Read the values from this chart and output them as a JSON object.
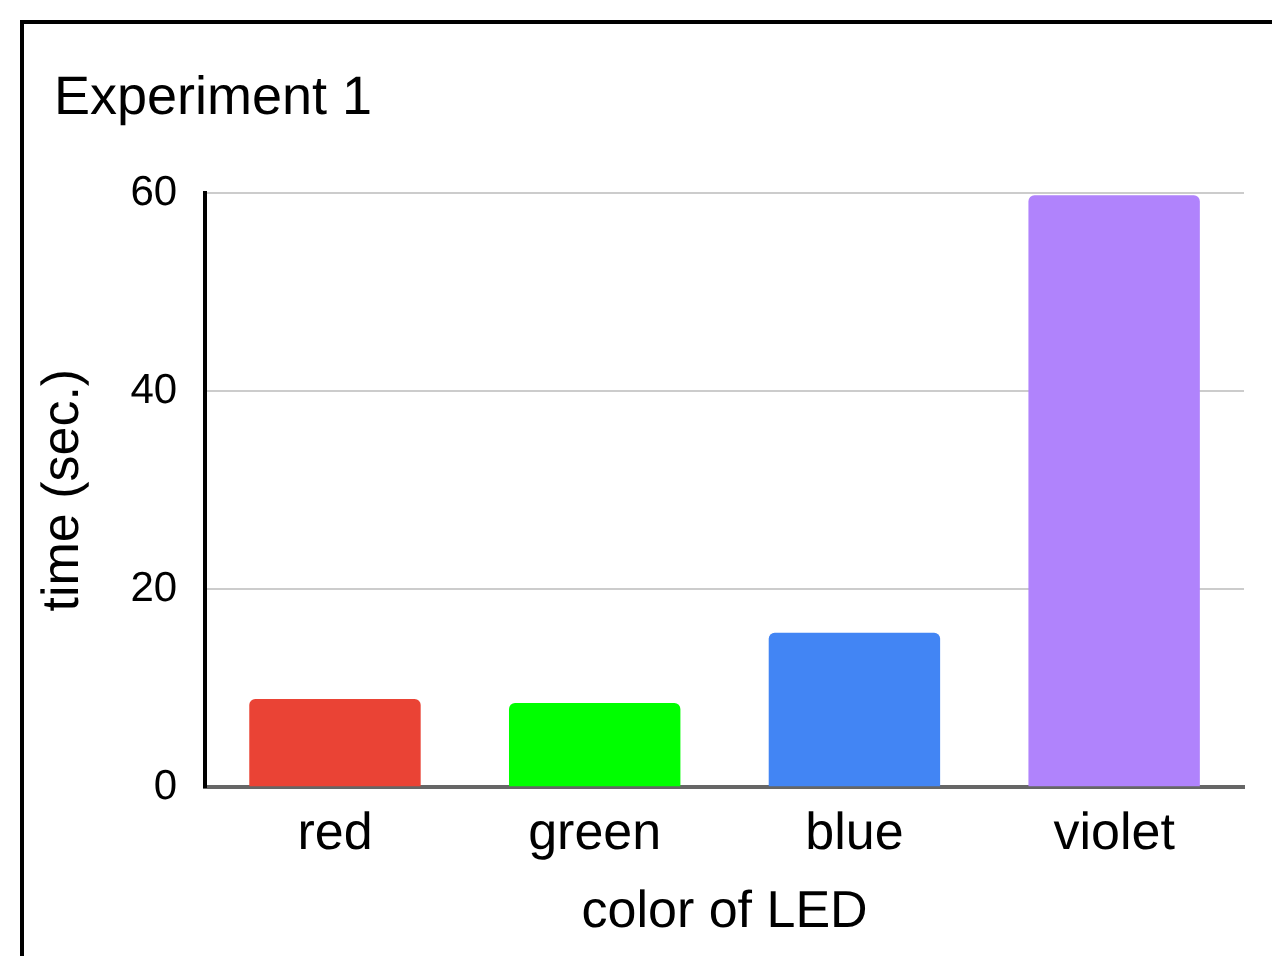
{
  "chart_data": {
    "type": "bar",
    "title": "Experiment 1",
    "xlabel": "color of LED",
    "ylabel": "time (sec.)",
    "categories": [
      "red",
      "green",
      "blue",
      "violet"
    ],
    "values": [
      8.9,
      8.5,
      15.6,
      59.8
    ],
    "colors": [
      "#ea4335",
      "#00ff00",
      "#4285f4",
      "#b083fc"
    ],
    "ylim": [
      0,
      60
    ],
    "yticks": [
      0,
      20,
      40,
      60
    ],
    "grid": "y",
    "legend": false
  }
}
